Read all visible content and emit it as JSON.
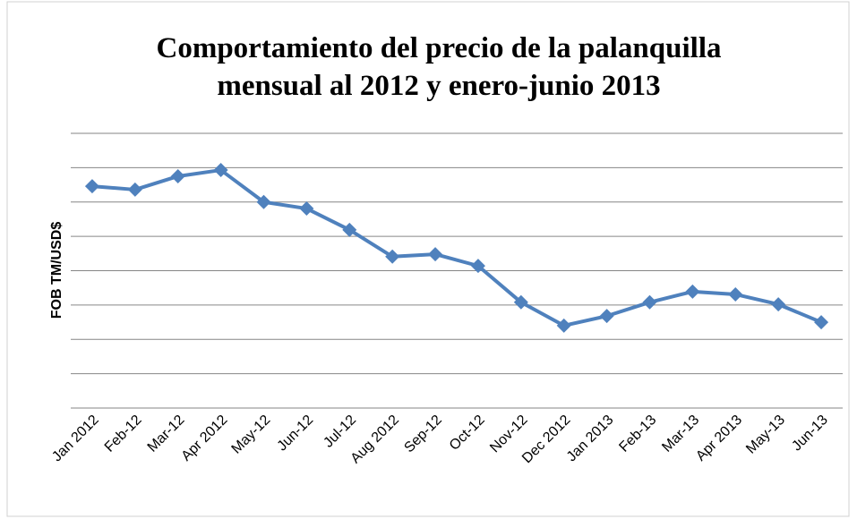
{
  "chart_data": {
    "type": "line",
    "title": [
      "Comportamiento del precio de la palanquilla",
      "mensual  al 2012 y enero-junio 2013"
    ],
    "y_label": "FOB TM/USD$",
    "categories": [
      "Jan 2012",
      "Feb-12",
      "Mar-12",
      "Apr 2012",
      "May-12",
      "Jun-12",
      "Jul-12",
      "Aug 2012",
      "Sep-12",
      "Oct-12",
      "Nov-12",
      "Dec 2012",
      "Jan 2013",
      "Feb-13",
      "Mar-13",
      "Apr 2013",
      "May-13",
      "Jun-13"
    ],
    "series": [
      {
        "name": "FOB TM/USD$",
        "color": "#4f81bd",
        "values": [
          646,
          636,
          675,
          693,
          600,
          581,
          519,
          441,
          448,
          414,
          308,
          240,
          268,
          308,
          339,
          331,
          302,
          250
        ]
      }
    ],
    "ylim": [
      0,
      800
    ],
    "yticks": [
      0,
      100,
      200,
      300,
      400,
      500,
      600,
      700,
      800
    ],
    "grid": true
  }
}
